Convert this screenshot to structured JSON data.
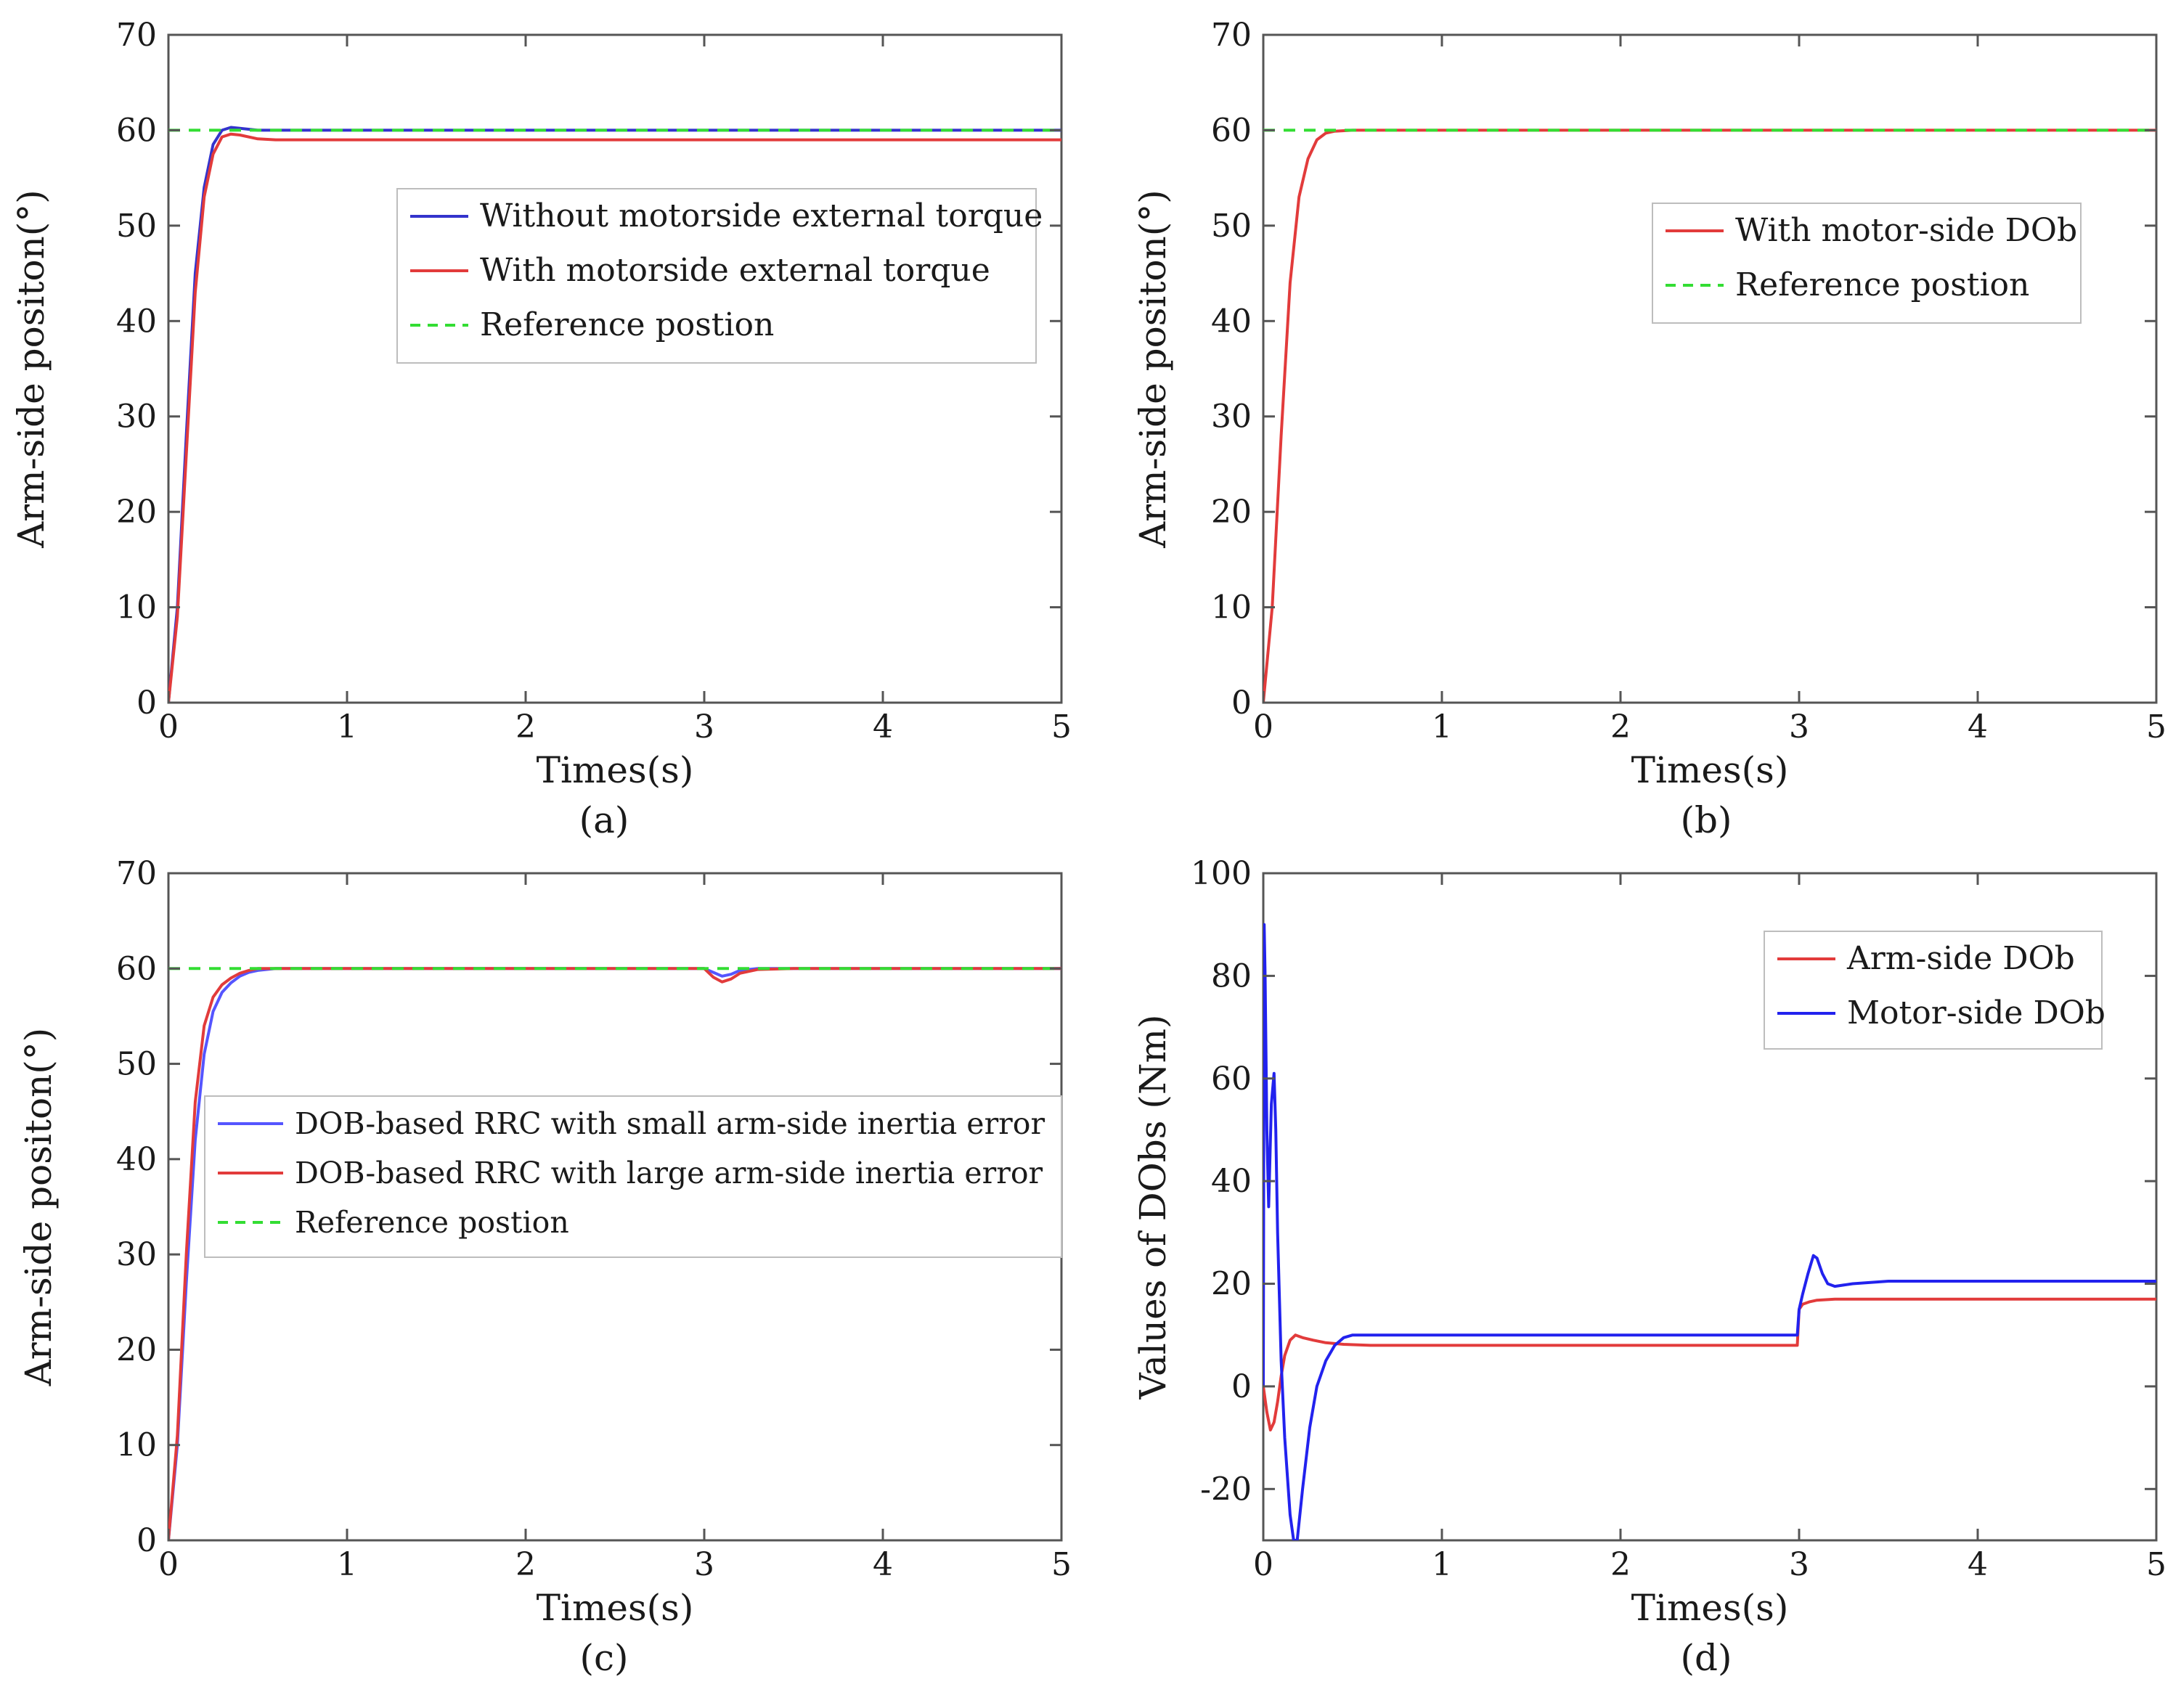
{
  "chart_data": [
    {
      "type": "line",
      "caption": "(a)",
      "xlabel": "Times(s)",
      "ylabel": "Arm-side positon(°)",
      "xlim": [
        0,
        5
      ],
      "ylim": [
        0,
        70
      ],
      "xticks": [
        "0",
        "1",
        "2",
        "3",
        "4",
        "5"
      ],
      "yticks": [
        "0",
        "10",
        "20",
        "30",
        "40",
        "50",
        "60",
        "70"
      ],
      "grid": false,
      "legend_position": "upper-right",
      "series": [
        {
          "name": "Without motorside external torque",
          "color": "#3333cc",
          "style": "solid",
          "x": [
            0,
            0.05,
            0.1,
            0.15,
            0.2,
            0.25,
            0.3,
            0.35,
            0.4,
            0.5,
            0.6,
            1,
            2,
            3,
            4,
            5
          ],
          "y": [
            0,
            10,
            28,
            45,
            54,
            58.5,
            60,
            60.3,
            60.2,
            60,
            60,
            60,
            60,
            60,
            60,
            60
          ]
        },
        {
          "name": "With motorside external torque",
          "color": "#e23b3b",
          "style": "solid",
          "x": [
            0,
            0.05,
            0.1,
            0.15,
            0.2,
            0.25,
            0.3,
            0.35,
            0.4,
            0.5,
            0.6,
            1,
            2,
            3,
            4,
            5
          ],
          "y": [
            0,
            9,
            26,
            43,
            53,
            57.5,
            59.3,
            59.6,
            59.5,
            59.1,
            59,
            59,
            59,
            59,
            59,
            59
          ]
        },
        {
          "name": "Reference postion",
          "color": "#33dd33",
          "style": "dashed",
          "x": [
            0,
            5
          ],
          "y": [
            60,
            60
          ]
        }
      ]
    },
    {
      "type": "line",
      "caption": "(b)",
      "xlabel": "Times(s)",
      "ylabel": "Arm-side positon(°)",
      "xlim": [
        0,
        5
      ],
      "ylim": [
        0,
        70
      ],
      "xticks": [
        "0",
        "1",
        "2",
        "3",
        "4",
        "5"
      ],
      "yticks": [
        "0",
        "10",
        "20",
        "30",
        "40",
        "50",
        "60",
        "70"
      ],
      "grid": false,
      "legend_position": "upper-right",
      "series": [
        {
          "name": "With motor-side DOb",
          "color": "#e23b3b",
          "style": "solid",
          "x": [
            0,
            0.05,
            0.1,
            0.15,
            0.2,
            0.25,
            0.3,
            0.35,
            0.4,
            0.5,
            1,
            2,
            3,
            4,
            5
          ],
          "y": [
            0,
            10,
            28,
            44,
            53,
            57,
            59,
            59.7,
            59.9,
            60,
            60,
            60,
            60,
            60,
            60
          ]
        },
        {
          "name": "Reference postion",
          "color": "#33dd33",
          "style": "dashed",
          "x": [
            0,
            5
          ],
          "y": [
            60,
            60
          ]
        }
      ]
    },
    {
      "type": "line",
      "caption": "(c)",
      "xlabel": "Times(s)",
      "ylabel": "Arm-side positon(°)",
      "xlim": [
        0,
        5
      ],
      "ylim": [
        0,
        70
      ],
      "xticks": [
        "0",
        "1",
        "2",
        "3",
        "4",
        "5"
      ],
      "yticks": [
        "0",
        "10",
        "20",
        "30",
        "40",
        "50",
        "60",
        "70"
      ],
      "grid": false,
      "legend_position": "center-left",
      "series": [
        {
          "name": "DOB-based RRC with  small arm-side inertia error",
          "color": "#5555ff",
          "style": "solid",
          "x": [
            0,
            0.05,
            0.1,
            0.15,
            0.2,
            0.25,
            0.3,
            0.35,
            0.4,
            0.45,
            0.5,
            0.6,
            1,
            2,
            3,
            3.05,
            3.1,
            3.15,
            3.2,
            3.3,
            3.5,
            4,
            5
          ],
          "y": [
            0,
            10,
            27,
            42,
            51,
            55.5,
            57.5,
            58.5,
            59.2,
            59.6,
            59.8,
            60,
            60,
            60,
            60,
            59.6,
            59.2,
            59.4,
            59.8,
            60,
            60,
            60,
            60
          ]
        },
        {
          "name": "DOB-based RRC with  large arm-side inertia error",
          "color": "#e23b3b",
          "style": "solid",
          "x": [
            0,
            0.05,
            0.1,
            0.15,
            0.2,
            0.25,
            0.3,
            0.35,
            0.4,
            0.45,
            0.5,
            0.6,
            1,
            2,
            3,
            3.05,
            3.1,
            3.15,
            3.2,
            3.3,
            3.5,
            4,
            5
          ],
          "y": [
            0,
            11,
            30,
            46,
            54,
            57,
            58.3,
            59,
            59.5,
            59.8,
            60,
            60,
            60,
            60,
            60,
            59.1,
            58.6,
            58.9,
            59.5,
            59.9,
            60,
            60,
            60
          ]
        },
        {
          "name": "Reference postion",
          "color": "#33dd33",
          "style": "dashed",
          "x": [
            0,
            5
          ],
          "y": [
            60,
            60
          ]
        }
      ]
    },
    {
      "type": "line",
      "caption": "(d)",
      "xlabel": "Times(s)",
      "ylabel": "Values of  DObs (Nm)",
      "xlim": [
        0,
        5
      ],
      "ylim": [
        -30,
        100
      ],
      "xticks": [
        "0",
        "1",
        "2",
        "3",
        "4",
        "5"
      ],
      "yticks": [
        "-20",
        "0",
        "20",
        "40",
        "60",
        "80",
        "100"
      ],
      "grid": false,
      "legend_position": "upper-right",
      "series": [
        {
          "name": "Arm-side DOb",
          "color": "#e23b3b",
          "style": "solid",
          "x": [
            0,
            0.02,
            0.04,
            0.06,
            0.08,
            0.1,
            0.12,
            0.15,
            0.18,
            0.22,
            0.28,
            0.35,
            0.45,
            0.6,
            1,
            2,
            2.99,
            3.0,
            3.02,
            3.06,
            3.1,
            3.2,
            3.4,
            4,
            5
          ],
          "y": [
            0,
            -5,
            -8.5,
            -7,
            -3,
            2,
            6,
            9,
            10,
            9.5,
            9,
            8.5,
            8.2,
            8,
            8,
            8,
            8,
            15,
            16,
            16.5,
            16.8,
            17,
            17,
            17,
            17
          ]
        },
        {
          "name": "Motor-side DOb",
          "color": "#2222ee",
          "style": "solid",
          "x": [
            0,
            0.005,
            0.01,
            0.02,
            0.03,
            0.045,
            0.06,
            0.07,
            0.08,
            0.1,
            0.12,
            0.15,
            0.17,
            0.19,
            0.22,
            0.26,
            0.3,
            0.35,
            0.4,
            0.45,
            0.5,
            0.55,
            0.6,
            0.7,
            1,
            2,
            2.99,
            3.0,
            3.02,
            3.05,
            3.08,
            3.1,
            3.13,
            3.16,
            3.2,
            3.3,
            3.5,
            4,
            5
          ],
          "y": [
            0,
            90,
            80,
            50,
            35,
            55,
            61,
            50,
            30,
            5,
            -10,
            -25,
            -30,
            -30,
            -20,
            -8,
            0,
            5,
            8,
            9.5,
            10,
            10,
            10,
            10,
            10,
            10,
            10,
            15,
            18,
            22,
            25.5,
            25,
            22,
            20,
            19.5,
            20,
            20.5,
            20.5,
            20.5
          ]
        }
      ]
    }
  ]
}
